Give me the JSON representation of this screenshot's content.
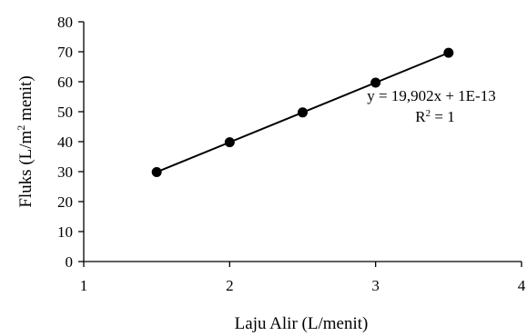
{
  "chart_data": {
    "type": "scatter",
    "xlabel": "Laju Alir (L/menit)",
    "ylabel_main": "Fluks (L/m",
    "ylabel_sup": "2",
    "ylabel_end": " menit)",
    "xlim": [
      1,
      4
    ],
    "ylim": [
      0,
      80
    ],
    "xticks": [
      1,
      2,
      3,
      4
    ],
    "yticks": [
      0,
      10,
      20,
      30,
      40,
      50,
      60,
      70,
      80
    ],
    "xtick_labels": [
      "1",
      "2",
      "3",
      "4"
    ],
    "ytick_labels": [
      "0",
      "10",
      "20",
      "30",
      "40",
      "50",
      "60",
      "70",
      "80"
    ],
    "grid": false,
    "series": [
      {
        "points": [
          {
            "x": 1.5,
            "y": 29.853
          },
          {
            "x": 2.0,
            "y": 39.804
          },
          {
            "x": 2.5,
            "y": 49.755
          },
          {
            "x": 3.0,
            "y": 59.706
          },
          {
            "x": 3.5,
            "y": 69.657
          }
        ],
        "color": "#000000"
      }
    ],
    "trendline": {
      "slope": 19.902,
      "intercept": 0,
      "from_x": 1.5,
      "to_x": 3.5,
      "equation": "y = 19,902x + 1E-13",
      "r2_main": "R",
      "r2_sup": "2",
      "r2_end": " = 1"
    }
  }
}
